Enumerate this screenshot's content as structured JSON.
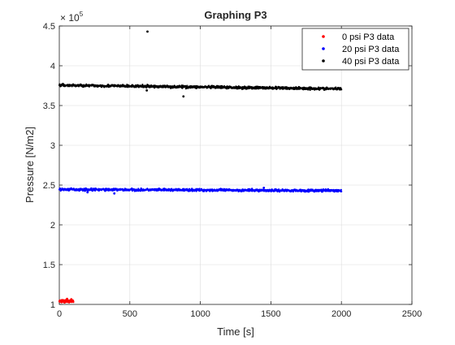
{
  "chart_data": {
    "type": "scatter",
    "title": "Graphing P3",
    "xlabel": "Time [s]",
    "ylabel": "Pressure [N/m2]",
    "xlim": [
      0,
      2500
    ],
    "ylim": [
      100000,
      450000
    ],
    "y_exponent_label": "× 10",
    "y_exponent_power": "5",
    "x_ticks": [
      0,
      500,
      1000,
      1500,
      2000,
      2500
    ],
    "x_tick_labels": [
      "0",
      "500",
      "1000",
      "1500",
      "2000",
      "2500"
    ],
    "y_ticks": [
      100000,
      150000,
      200000,
      250000,
      300000,
      350000,
      400000,
      450000
    ],
    "y_tick_labels": [
      "1",
      "1.5",
      "2",
      "2.5",
      "3",
      "3.5",
      "4",
      "4.5"
    ],
    "grid": true,
    "legend_position": "top-right",
    "series": [
      {
        "name": "0 psi P3 data",
        "color": "#ff0000",
        "x_range": [
          0,
          100
        ],
        "baseline": 104000,
        "noise": 1200,
        "outliers": [
          [
            55,
            107000
          ],
          [
            85,
            106500
          ]
        ]
      },
      {
        "name": "20 psi P3 data",
        "color": "#0000ff",
        "x_range": [
          0,
          2000
        ],
        "baseline_start": 244500,
        "baseline_end": 243000,
        "noise": 1300,
        "outliers": [
          [
            390,
            239500
          ],
          [
            200,
            241000
          ],
          [
            1450,
            246500
          ]
        ]
      },
      {
        "name": "40 psi P3 data",
        "color": "#000000",
        "x_range": [
          0,
          2000
        ],
        "baseline_start": 375500,
        "baseline_end": 371000,
        "noise": 1400,
        "outliers": [
          [
            625,
            443000
          ],
          [
            880,
            361500
          ],
          [
            620,
            369000
          ]
        ]
      }
    ]
  }
}
